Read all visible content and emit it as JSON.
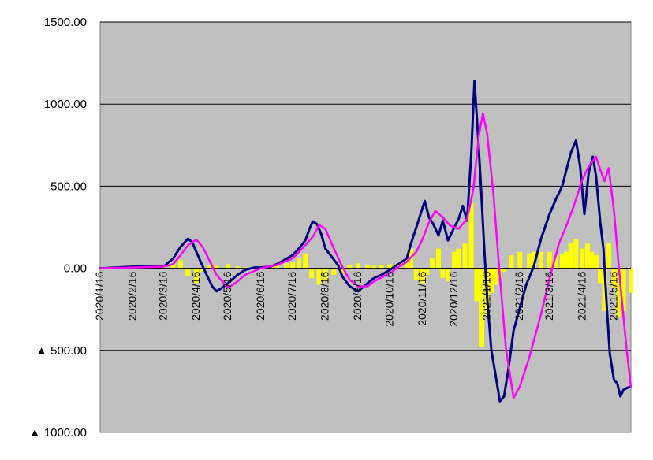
{
  "chart_data": {
    "type": "line",
    "title": "",
    "xlabel": "",
    "ylabel": "",
    "ylim": [
      -1000,
      1500
    ],
    "grid": true,
    "legend": "none",
    "colors": {
      "plot_bg": "#c0c0c0",
      "bar": "#ffff00",
      "line_dark": "#000080",
      "line_ma": "#ff00ff",
      "grid": "#000000"
    },
    "yticks": [
      {
        "value": 1500,
        "label": "1500.00"
      },
      {
        "value": 1000,
        "label": "1000.00"
      },
      {
        "value": 500,
        "label": "500.00"
      },
      {
        "value": 0,
        "label": "0.00"
      },
      {
        "value": -500,
        "label": "▲ 500.00"
      },
      {
        "value": -1000,
        "label": "▲ 1000.00"
      }
    ],
    "x_start": "2020/1/16",
    "x_end": "2021/6/1",
    "xticks": [
      "2020/1/16",
      "2020/2/16",
      "2020/3/16",
      "2020/4/16",
      "2020/5/16",
      "2020/6/16",
      "2020/7/16",
      "2020/8/16",
      "2020/9/16",
      "2020/10/16",
      "2020/11/16",
      "2020/12/16",
      "2021/1/16",
      "2021/2/16",
      "2021/3/16",
      "2021/4/16",
      "2021/5/16"
    ],
    "series": [
      {
        "kind": "bar",
        "x": [
          "2020/1/16",
          "2020/2/1",
          "2020/2/16",
          "2020/3/1",
          "2020/3/16",
          "2020/3/25",
          "2020/4/1",
          "2020/4/8",
          "2020/4/16",
          "2020/4/22",
          "2020/4/29",
          "2020/5/5",
          "2020/5/16",
          "2020/5/25",
          "2020/6/1",
          "2020/6/16",
          "2020/6/25",
          "2020/7/1",
          "2020/7/10",
          "2020/7/16",
          "2020/7/22",
          "2020/7/28",
          "2020/8/3",
          "2020/8/10",
          "2020/8/16",
          "2020/8/24",
          "2020/9/1",
          "2020/9/8",
          "2020/9/16",
          "2020/9/25",
          "2020/10/1",
          "2020/10/8",
          "2020/10/16",
          "2020/10/25",
          "2020/11/1",
          "2020/11/5",
          "2020/11/10",
          "2020/11/16",
          "2020/11/20",
          "2020/11/25",
          "2020/12/1",
          "2020/12/5",
          "2020/12/10",
          "2020/12/16",
          "2020/12/20",
          "2020/12/26",
          "2021/1/1",
          "2021/1/6",
          "2021/1/11",
          "2021/1/16",
          "2021/1/20",
          "2021/1/24",
          "2021/1/28",
          "2021/2/1",
          "2021/2/8",
          "2021/2/16",
          "2021/2/25",
          "2021/3/1",
          "2021/3/8",
          "2021/3/16",
          "2021/3/22",
          "2021/3/28",
          "2021/4/1",
          "2021/4/5",
          "2021/4/10",
          "2021/4/16",
          "2021/4/21",
          "2021/4/25",
          "2021/4/29",
          "2021/5/3",
          "2021/5/7",
          "2021/5/11",
          "2021/5/16",
          "2021/5/20",
          "2021/5/25",
          "2021/6/1"
        ],
        "values": [
          0,
          5,
          5,
          10,
          8,
          30,
          50,
          -50,
          -90,
          -20,
          20,
          15,
          25,
          10,
          5,
          3,
          10,
          20,
          30,
          40,
          60,
          90,
          -60,
          -100,
          -80,
          -40,
          -30,
          20,
          30,
          20,
          15,
          20,
          25,
          40,
          60,
          120,
          -70,
          -90,
          -40,
          60,
          120,
          -60,
          -80,
          100,
          120,
          150,
          400,
          -200,
          -480,
          -300,
          -150,
          -100,
          -60,
          -20,
          80,
          100,
          90,
          100,
          100,
          100,
          80,
          90,
          100,
          150,
          180,
          120,
          150,
          100,
          80,
          -90,
          -260,
          150,
          -120,
          -300,
          -260,
          -150
        ]
      },
      {
        "kind": "line",
        "x": [
          "2020/1/16",
          "2020/2/1",
          "2020/2/16",
          "2020/3/1",
          "2020/3/16",
          "2020/3/25",
          "2020/4/1",
          "2020/4/8",
          "2020/4/12",
          "2020/4/16",
          "2020/4/20",
          "2020/4/25",
          "2020/5/1",
          "2020/5/5",
          "2020/5/10",
          "2020/5/16",
          "2020/5/25",
          "2020/6/1",
          "2020/6/10",
          "2020/6/16",
          "2020/6/25",
          "2020/7/1",
          "2020/7/8",
          "2020/7/16",
          "2020/7/22",
          "2020/7/28",
          "2020/8/1",
          "2020/8/4",
          "2020/8/8",
          "2020/8/12",
          "2020/8/16",
          "2020/8/22",
          "2020/8/28",
          "2020/9/1",
          "2020/9/8",
          "2020/9/16",
          "2020/9/25",
          "2020/10/1",
          "2020/10/8",
          "2020/10/16",
          "2020/10/25",
          "2020/11/1",
          "2020/11/5",
          "2020/11/10",
          "2020/11/14",
          "2020/11/18",
          "2020/11/22",
          "2020/11/26",
          "2020/12/1",
          "2020/12/5",
          "2020/12/10",
          "2020/12/16",
          "2020/12/20",
          "2020/12/24",
          "2020/12/28",
          "2021/1/1",
          "2021/1/4",
          "2021/1/7",
          "2021/1/10",
          "2021/1/13",
          "2021/1/16",
          "2021/1/20",
          "2021/1/24",
          "2021/1/28",
          "2021/2/1",
          "2021/2/5",
          "2021/2/10",
          "2021/2/16",
          "2021/2/22",
          "2021/3/1",
          "2021/3/8",
          "2021/3/16",
          "2021/3/22",
          "2021/3/28",
          "2021/4/1",
          "2021/4/5",
          "2021/4/10",
          "2021/4/14",
          "2021/4/18",
          "2021/4/22",
          "2021/4/26",
          "2021/4/29",
          "2021/5/3",
          "2021/5/6",
          "2021/5/9",
          "2021/5/12",
          "2021/5/16",
          "2021/5/19",
          "2021/5/22",
          "2021/5/25",
          "2021/5/28",
          "2021/6/1"
        ],
        "values": [
          0,
          5,
          10,
          15,
          10,
          60,
          130,
          180,
          160,
          100,
          40,
          -30,
          -110,
          -140,
          -120,
          -90,
          -40,
          -10,
          5,
          5,
          10,
          25,
          50,
          80,
          120,
          170,
          240,
          285,
          270,
          210,
          120,
          70,
          20,
          -50,
          -110,
          -140,
          -90,
          -60,
          -40,
          -10,
          30,
          60,
          150,
          250,
          330,
          410,
          310,
          270,
          200,
          290,
          170,
          250,
          300,
          380,
          290,
          700,
          1140,
          850,
          520,
          150,
          -180,
          -500,
          -650,
          -810,
          -780,
          -620,
          -380,
          -240,
          -100,
          10,
          180,
          330,
          420,
          500,
          600,
          700,
          780,
          620,
          330,
          580,
          680,
          560,
          280,
          120,
          -220,
          -520,
          -680,
          -700,
          -780,
          -740,
          -730,
          -720
        ]
      },
      {
        "kind": "line",
        "x": [
          "2020/1/16",
          "2020/2/16",
          "2020/3/16",
          "2020/3/25",
          "2020/4/1",
          "2020/4/8",
          "2020/4/16",
          "2020/4/22",
          "2020/4/29",
          "2020/5/5",
          "2020/5/16",
          "2020/5/25",
          "2020/6/1",
          "2020/6/16",
          "2020/7/1",
          "2020/7/16",
          "2020/7/28",
          "2020/8/5",
          "2020/8/10",
          "2020/8/16",
          "2020/8/24",
          "2020/9/1",
          "2020/9/8",
          "2020/9/16",
          "2020/9/25",
          "2020/10/1",
          "2020/10/16",
          "2020/10/25",
          "2020/11/1",
          "2020/11/10",
          "2020/11/16",
          "2020/11/22",
          "2020/11/28",
          "2020/12/5",
          "2020/12/12",
          "2020/12/20",
          "2020/12/28",
          "2021/1/3",
          "2021/1/8",
          "2021/1/12",
          "2021/1/16",
          "2021/1/22",
          "2021/1/28",
          "2021/2/3",
          "2021/2/10",
          "2021/2/16",
          "2021/2/25",
          "2021/3/8",
          "2021/3/16",
          "2021/3/25",
          "2021/4/1",
          "2021/4/8",
          "2021/4/16",
          "2021/4/22",
          "2021/4/29",
          "2021/5/3",
          "2021/5/7",
          "2021/5/11",
          "2021/5/16",
          "2021/5/22",
          "2021/5/28",
          "2021/6/1"
        ],
        "values": [
          0,
          5,
          10,
          25,
          80,
          140,
          175,
          130,
          40,
          -40,
          -120,
          -80,
          -40,
          0,
          20,
          60,
          140,
          200,
          265,
          240,
          120,
          10,
          -70,
          -110,
          -110,
          -80,
          -30,
          10,
          40,
          100,
          180,
          280,
          350,
          310,
          260,
          240,
          300,
          480,
          800,
          945,
          820,
          450,
          -50,
          -500,
          -790,
          -720,
          -540,
          -280,
          -60,
          150,
          260,
          380,
          540,
          620,
          680,
          600,
          530,
          610,
          350,
          -100,
          -500,
          -720
        ]
      }
    ]
  }
}
